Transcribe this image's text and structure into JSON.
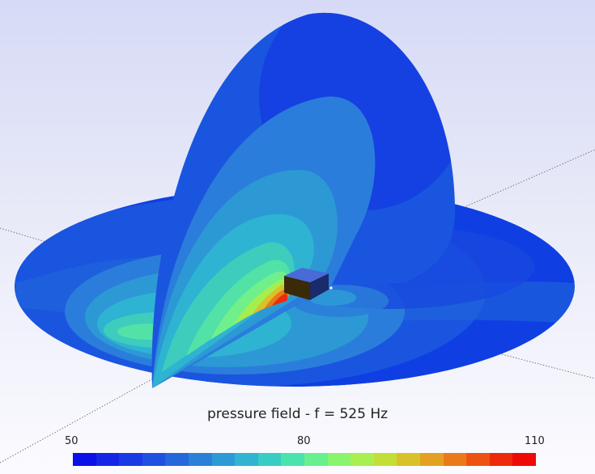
{
  "plot": {
    "title": "pressure field - f = 525 Hz"
  },
  "colorbar": {
    "min_label": "50",
    "mid_label": "80",
    "max_label": "110",
    "min": 50,
    "max": 110,
    "colors": [
      "#0a10e8",
      "#1425e6",
      "#1a3be4",
      "#1f50e0",
      "#2468dc",
      "#2b80d8",
      "#2d9ad6",
      "#30b4d2",
      "#37cdc4",
      "#4ae3ac",
      "#68f08e",
      "#8af56c",
      "#a8ef50",
      "#c4de38",
      "#d8c22a",
      "#e4a020",
      "#ea7a18",
      "#ee5212",
      "#ee2a0c",
      "#ee0a06"
    ]
  },
  "colors": {
    "background_top": "#d6daf6",
    "background_bottom": "#fbfbff",
    "low": "#0a10e8",
    "high": "#ee0a06"
  }
}
